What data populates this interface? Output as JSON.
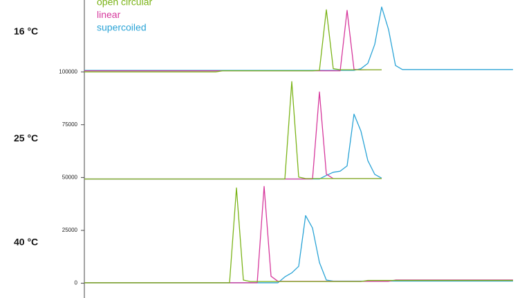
{
  "chart_data": {
    "type": "line",
    "series": [
      {
        "name": "open circular",
        "color": "#7ab317"
      },
      {
        "name": "linear",
        "color": "#d6379c"
      },
      {
        "name": "supercoiled",
        "color": "#29a3d6"
      }
    ],
    "categories": [
      null,
      null,
      null,
      null,
      null,
      null,
      null,
      null,
      null,
      null,
      null,
      null,
      null,
      null,
      null,
      null,
      null,
      null,
      null,
      null,
      null,
      null,
      null,
      null,
      null,
      null,
      null,
      null,
      null,
      null,
      null,
      null,
      null,
      null,
      null,
      null,
      null,
      null,
      null,
      null,
      null,
      null,
      null,
      null,
      null,
      null,
      null,
      null,
      null,
      null,
      null,
      null,
      null,
      null,
      null,
      null,
      null,
      null,
      null,
      null,
      null,
      null,
      null
    ],
    "ylim": [
      -7000,
      134000
    ],
    "yticks": [
      0,
      25000,
      50000,
      75000,
      100000
    ],
    "panels": [
      {
        "label": "16 °C",
        "values": [
          [
            100000,
            100000,
            100000,
            100000,
            100000,
            100000,
            100000,
            100000,
            100000,
            100000,
            100000,
            100000,
            100000,
            100000,
            100000,
            100000,
            100000,
            100000,
            100000,
            100000,
            100500,
            100500,
            100500,
            100500,
            100500,
            100500,
            100500,
            100500,
            100500,
            100500,
            100500,
            100500,
            100500,
            100500,
            100700,
            129400,
            101500,
            101000,
            101000,
            101000,
            101000,
            101000,
            101000,
            101000,
            null,
            null,
            null,
            null,
            null,
            null,
            null,
            null,
            null,
            null,
            null,
            null,
            null,
            null,
            null,
            null,
            null,
            null,
            null
          ],
          [
            100500,
            100500,
            100500,
            100500,
            100500,
            100500,
            100500,
            100500,
            100500,
            100500,
            100500,
            100500,
            100500,
            100500,
            100500,
            100500,
            100500,
            100500,
            100500,
            100500,
            100500,
            100500,
            100500,
            100500,
            100500,
            100500,
            100500,
            100500,
            100500,
            100500,
            100500,
            100500,
            100500,
            100500,
            100500,
            100500,
            100500,
            100500,
            129100,
            101200,
            100900,
            101000,
            101000,
            101000,
            null,
            null,
            null,
            null,
            null,
            null,
            null,
            null,
            null,
            null,
            null,
            null,
            null,
            null,
            null,
            null,
            null,
            null,
            null
          ],
          [
            100700,
            100700,
            100700,
            100700,
            100700,
            100700,
            100700,
            100700,
            100700,
            100700,
            100700,
            100700,
            100700,
            100700,
            100700,
            100700,
            100700,
            100700,
            100700,
            100700,
            100700,
            100700,
            100700,
            100700,
            100700,
            100700,
            100700,
            100700,
            100700,
            100700,
            100700,
            100700,
            100700,
            100700,
            100700,
            100700,
            100700,
            100700,
            100700,
            100700,
            101500,
            104000,
            113000,
            130700,
            120000,
            103000,
            101100,
            101100,
            101100,
            101100,
            101100,
            101100,
            101100,
            101100,
            101100,
            101100,
            101100,
            101100,
            101100,
            101100,
            101100,
            101100,
            101100
          ]
        ]
      },
      {
        "label": "25 °C",
        "values": [
          [
            49300,
            49300,
            49300,
            49300,
            49300,
            49300,
            49300,
            49300,
            49300,
            49300,
            49300,
            49300,
            49300,
            49300,
            49300,
            49300,
            49300,
            49300,
            49300,
            49300,
            49300,
            49300,
            49300,
            49300,
            49300,
            49300,
            49300,
            49300,
            49300,
            49300,
            95400,
            50200,
            49500,
            49500,
            49500,
            49500,
            49500,
            49500,
            49500,
            49500,
            49500,
            49500,
            49500,
            49500,
            null,
            null,
            null,
            null,
            null,
            null,
            null,
            null,
            null,
            null,
            null,
            null,
            null,
            null,
            null,
            null,
            null,
            null,
            null
          ],
          [
            49300,
            49300,
            49300,
            49300,
            49300,
            49300,
            49300,
            49300,
            49300,
            49300,
            49300,
            49300,
            49300,
            49300,
            49300,
            49300,
            49300,
            49300,
            49300,
            49300,
            49300,
            49300,
            49300,
            49300,
            49300,
            49300,
            49300,
            49300,
            49300,
            49300,
            49300,
            49300,
            49300,
            49300,
            90500,
            51600,
            49500,
            49500,
            49500,
            49500,
            49500,
            49500,
            49500,
            49500,
            null,
            null,
            null,
            null,
            null,
            null,
            null,
            null,
            null,
            null,
            null,
            null,
            null,
            null,
            null,
            null,
            null,
            null,
            null
          ],
          [
            49300,
            49300,
            49300,
            49300,
            49300,
            49300,
            49300,
            49300,
            49300,
            49300,
            49300,
            49300,
            49300,
            49300,
            49300,
            49300,
            49300,
            49300,
            49300,
            49300,
            49300,
            49300,
            49300,
            49300,
            49300,
            49300,
            49300,
            49300,
            49300,
            49300,
            49300,
            49300,
            49300,
            49300,
            49300,
            51000,
            52500,
            53000,
            55500,
            80000,
            72000,
            58000,
            51500,
            49700,
            null,
            null,
            null,
            null,
            null,
            null,
            null,
            null,
            null,
            null,
            null,
            null,
            null,
            null,
            null,
            null,
            null,
            null,
            null
          ]
        ]
      },
      {
        "label": "40 °C",
        "values": [
          [
            200,
            200,
            200,
            200,
            200,
            200,
            200,
            200,
            200,
            200,
            200,
            200,
            200,
            200,
            200,
            200,
            200,
            200,
            200,
            200,
            200,
            200,
            45100,
            1500,
            800,
            800,
            800,
            800,
            800,
            800,
            800,
            800,
            800,
            800,
            800,
            800,
            800,
            800,
            800,
            800,
            800,
            1300,
            1300,
            1300,
            1300,
            1300,
            1300,
            1300,
            1300,
            1300,
            1300,
            1300,
            1300,
            1300,
            1300,
            1300,
            1300,
            1300,
            1300,
            1300,
            1300,
            1300,
            1300
          ],
          [
            200,
            200,
            200,
            200,
            200,
            200,
            200,
            200,
            200,
            200,
            200,
            200,
            200,
            200,
            200,
            200,
            200,
            200,
            200,
            200,
            200,
            200,
            200,
            200,
            200,
            200,
            45800,
            3300,
            900,
            900,
            900,
            900,
            900,
            900,
            900,
            900,
            900,
            900,
            900,
            900,
            900,
            900,
            900,
            900,
            900,
            1500,
            1500,
            1500,
            1500,
            1500,
            1500,
            1500,
            1500,
            1500,
            1500,
            1500,
            1500,
            1500,
            1500,
            1500,
            1500,
            1500,
            1500
          ],
          [
            200,
            200,
            200,
            200,
            200,
            200,
            200,
            200,
            200,
            200,
            200,
            200,
            200,
            200,
            200,
            200,
            200,
            200,
            200,
            200,
            200,
            200,
            200,
            200,
            200,
            200,
            200,
            200,
            200,
            3000,
            4900,
            8000,
            32000,
            26100,
            9800,
            1500,
            1000,
            1000,
            1000,
            1000,
            1000,
            1000,
            1000,
            1000,
            1000,
            1000,
            1000,
            1000,
            1000,
            1000,
            1000,
            1000,
            1000,
            1000,
            1000,
            1000,
            1000,
            1000,
            1000,
            1000,
            1000,
            1000,
            1000
          ]
        ]
      }
    ]
  }
}
